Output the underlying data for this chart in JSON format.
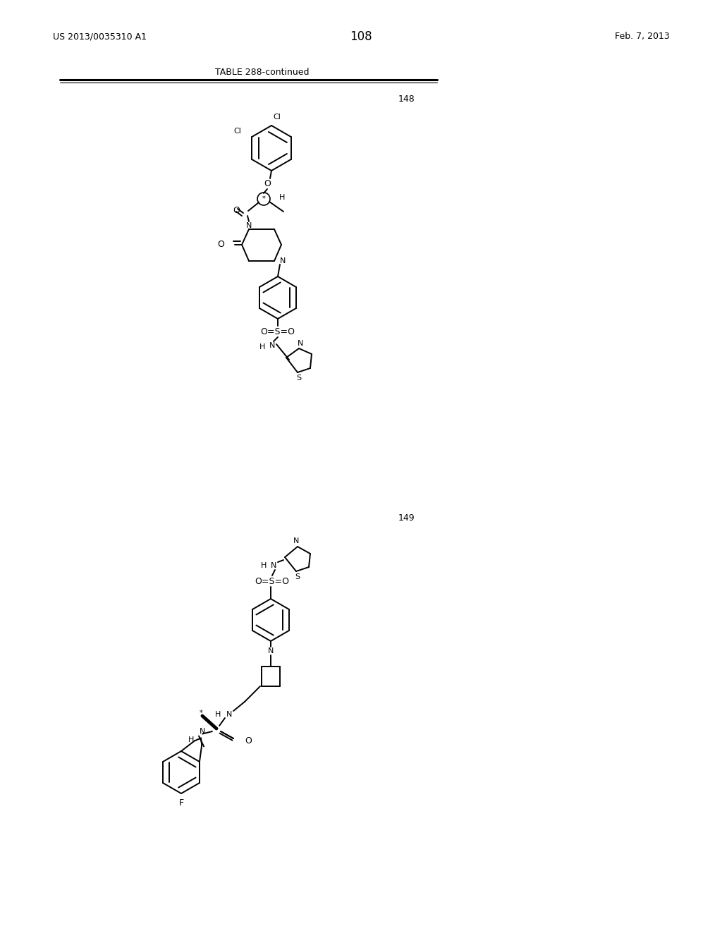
{
  "page_number": "108",
  "patent_number": "US 2013/0035310 A1",
  "patent_date": "Feb. 7, 2013",
  "table_title": "TABLE 288-continued",
  "compound_148_number": "148",
  "compound_149_number": "149",
  "bg_color": "#ffffff",
  "text_color": "#000000"
}
